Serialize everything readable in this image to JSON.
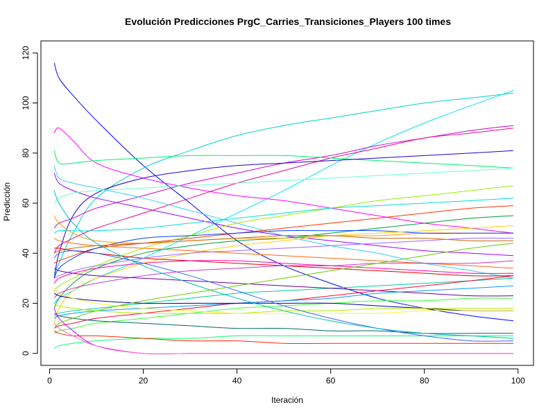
{
  "chart_data": {
    "type": "line",
    "title": "Evolución Predicciones PrgC_Carries_Transiciones_Players 100 times",
    "xlabel": "Iteración",
    "ylabel": "Predicción",
    "xlim": [
      1,
      99
    ],
    "ylim": [
      0,
      120
    ],
    "xticks": [
      0,
      20,
      40,
      60,
      80,
      100
    ],
    "yticks": [
      0,
      20,
      40,
      60,
      80,
      100,
      120
    ],
    "grid": false,
    "legend": "none",
    "x": [
      1,
      2,
      5,
      10,
      20,
      30,
      40,
      50,
      60,
      70,
      80,
      90,
      99
    ],
    "series": [
      {
        "color": "#0000ff",
        "values": [
          116,
          110,
          103,
          93,
          75,
          60,
          45,
          35,
          28,
          22,
          18,
          15,
          13
        ]
      },
      {
        "color": "#00ced1",
        "values": [
          32,
          36,
          48,
          62,
          74,
          81,
          87,
          91,
          94,
          97,
          100,
          102,
          104
        ]
      },
      {
        "color": "#00e5ee",
        "values": [
          20,
          22,
          25,
          30,
          38,
          47,
          56,
          65,
          75,
          84,
          92,
          99,
          105
        ]
      },
      {
        "color": "#ff00ff",
        "values": [
          88,
          90,
          85,
          76,
          70,
          66,
          63,
          61,
          58,
          55,
          52,
          50,
          48
        ]
      },
      {
        "color": "#cc00cc",
        "values": [
          50,
          52,
          54,
          58,
          63,
          68,
          72,
          76,
          79,
          83,
          86,
          89,
          91
        ]
      },
      {
        "color": "#ee0088",
        "values": [
          40,
          43,
          46,
          50,
          56,
          62,
          68,
          73,
          78,
          82,
          86,
          88,
          90
        ]
      },
      {
        "color": "#00ee66",
        "values": [
          81,
          76,
          76,
          77,
          78,
          79,
          79,
          79,
          78,
          77,
          76,
          75,
          74
        ]
      },
      {
        "color": "#1a00cc",
        "values": [
          30,
          40,
          55,
          64,
          70,
          73,
          75,
          76,
          77,
          78,
          79,
          80,
          81
        ]
      },
      {
        "color": "#9900ff",
        "values": [
          72,
          68,
          65,
          62,
          58,
          54,
          50,
          47,
          45,
          43,
          41,
          40,
          39
        ]
      },
      {
        "color": "#66ffcc",
        "values": [
          60,
          62,
          64,
          65,
          66,
          67,
          68,
          69,
          70,
          71,
          72,
          73,
          74
        ]
      },
      {
        "color": "#33ccff",
        "values": [
          75,
          70,
          68,
          66,
          62,
          57,
          52,
          47,
          43,
          40,
          36,
          33,
          30
        ]
      },
      {
        "color": "#99ee00",
        "values": [
          25,
          27,
          30,
          35,
          42,
          47,
          52,
          55,
          58,
          61,
          63,
          65,
          67
        ]
      },
      {
        "color": "#00dddd",
        "values": [
          48,
          49,
          49,
          49,
          50,
          52,
          54,
          56,
          58,
          59,
          60,
          61,
          62
        ]
      },
      {
        "color": "#ff3300",
        "values": [
          36,
          37,
          39,
          42,
          44,
          46,
          48,
          50,
          52,
          54,
          56,
          58,
          59
        ]
      },
      {
        "color": "#009933",
        "values": [
          18,
          22,
          28,
          34,
          40,
          43,
          45,
          46,
          48,
          50,
          52,
          54,
          55
        ]
      },
      {
        "color": "#ff9900",
        "values": [
          55,
          52,
          48,
          45,
          44,
          45,
          46,
          46,
          47,
          47,
          48,
          48,
          48
        ]
      },
      {
        "color": "#0044ff",
        "values": [
          30,
          34,
          38,
          42,
          46,
          47,
          48,
          49,
          49,
          49,
          48,
          48,
          48
        ]
      },
      {
        "color": "#ffcc00",
        "values": [
          12,
          18,
          25,
          30,
          36,
          40,
          43,
          45,
          47,
          48,
          49,
          50,
          51
        ]
      },
      {
        "color": "#cc6600",
        "values": [
          40,
          41,
          42,
          43,
          44,
          45,
          46,
          47,
          47,
          46,
          46,
          45,
          45
        ]
      },
      {
        "color": "#dd0000",
        "values": [
          42,
          42,
          41,
          40,
          38,
          37,
          36,
          35,
          34,
          33,
          32,
          31,
          31
        ]
      },
      {
        "color": "#ff6600",
        "values": [
          46,
          45,
          44,
          43,
          42,
          41,
          40,
          39,
          38,
          37,
          36,
          35,
          34
        ]
      },
      {
        "color": "#cc33cc",
        "values": [
          22,
          24,
          26,
          28,
          31,
          33,
          34,
          35,
          35,
          36,
          36,
          36,
          37
        ]
      },
      {
        "color": "#00cc99",
        "values": [
          15,
          16,
          17,
          18,
          20,
          22,
          24,
          25,
          26,
          27,
          28,
          29,
          30
        ]
      },
      {
        "color": "#660099",
        "values": [
          34,
          33,
          32,
          31,
          30,
          29,
          28,
          27,
          26,
          25,
          24,
          23,
          23
        ]
      },
      {
        "color": "#ff0033",
        "values": [
          10,
          11,
          12,
          14,
          16,
          18,
          20,
          21,
          23,
          25,
          27,
          29,
          31
        ]
      },
      {
        "color": "#0099ff",
        "values": [
          14,
          15,
          16,
          17,
          18,
          19,
          20,
          21,
          22,
          24,
          25,
          26,
          27
        ]
      },
      {
        "color": "#33ff33",
        "values": [
          8,
          9,
          10,
          12,
          14,
          16,
          18,
          19,
          20,
          21,
          21,
          22,
          22
        ]
      },
      {
        "color": "#000099",
        "values": [
          24,
          23,
          22,
          21,
          20,
          20,
          20,
          20,
          20,
          19,
          18,
          17,
          17
        ]
      },
      {
        "color": "#aaee00",
        "values": [
          20,
          19,
          18,
          17,
          16,
          16,
          16,
          17,
          17,
          18,
          18,
          18,
          18
        ]
      },
      {
        "color": "#ffee33",
        "values": [
          26,
          24,
          22,
          20,
          18,
          17,
          16,
          16,
          16,
          16,
          17,
          17,
          17
        ]
      },
      {
        "color": "#006666",
        "values": [
          16,
          15,
          14,
          13,
          12,
          11,
          10,
          10,
          9,
          9,
          8,
          8,
          8
        ]
      },
      {
        "color": "#00ff66",
        "values": [
          2,
          3,
          4,
          5,
          6,
          6,
          7,
          7,
          7,
          7,
          7,
          7,
          7
        ]
      },
      {
        "color": "#ff2200",
        "values": [
          9,
          8,
          7,
          7,
          6,
          5,
          5,
          4,
          4,
          4,
          4,
          4,
          4
        ]
      },
      {
        "color": "#cc00ff",
        "values": [
          18,
          14,
          9,
          3,
          0,
          0,
          0,
          0,
          0,
          0,
          0,
          0,
          0
        ]
      },
      {
        "color": "#ff66cc",
        "values": [
          12,
          10,
          7,
          3,
          0,
          0,
          0,
          0,
          0,
          0,
          0,
          0,
          0
        ]
      },
      {
        "color": "#3366ff",
        "values": [
          38,
          40,
          41,
          40,
          36,
          31,
          25,
          19,
          14,
          10,
          7,
          5,
          5
        ]
      },
      {
        "color": "#00bbbb",
        "values": [
          65,
          60,
          52,
          44,
          35,
          28,
          22,
          17,
          13,
          10,
          8,
          7,
          6
        ]
      },
      {
        "color": "#9966ff",
        "values": [
          30,
          31,
          33,
          35,
          38,
          40,
          41,
          42,
          43,
          44,
          45,
          46,
          46
        ]
      },
      {
        "color": "#ff00aa",
        "values": [
          28,
          30,
          32,
          34,
          36,
          37,
          37,
          36,
          35,
          34,
          33,
          32,
          32
        ]
      },
      {
        "color": "#66cc00",
        "values": [
          10,
          12,
          14,
          17,
          21,
          24,
          27,
          30,
          33,
          36,
          39,
          42,
          44
        ]
      }
    ]
  }
}
